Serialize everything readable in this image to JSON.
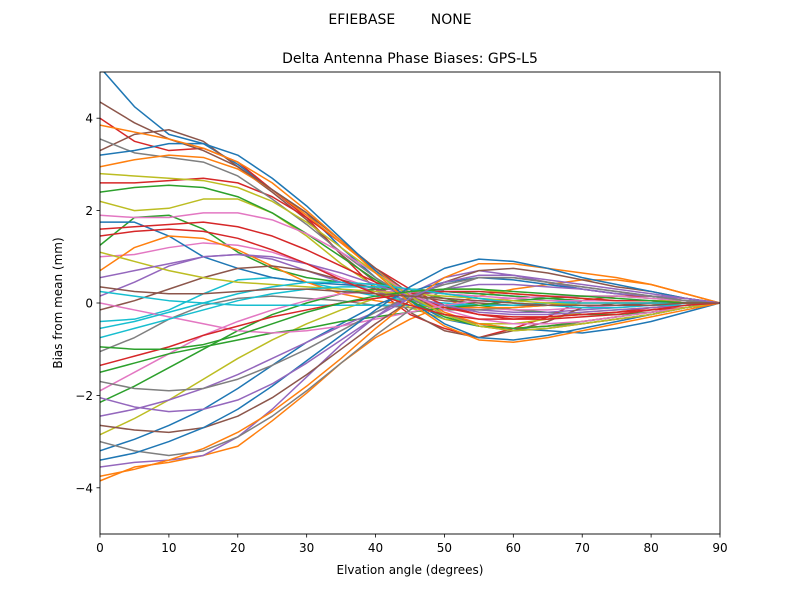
{
  "figure": {
    "suptitle": "EFIEBASE        NONE"
  },
  "chart_data": {
    "type": "line",
    "title": "Delta Antenna Phase Biases: GPS-L5",
    "xlabel": "Elvation angle (degrees)",
    "ylabel": "Bias from mean (mm)",
    "xlim": [
      0,
      90
    ],
    "ylim": [
      -5,
      5
    ],
    "xticks": [
      0,
      10,
      20,
      30,
      40,
      50,
      60,
      70,
      80,
      90
    ],
    "xtick_labels": [
      "0",
      "10",
      "20",
      "30",
      "40",
      "50",
      "60",
      "70",
      "80",
      "90"
    ],
    "yticks": [
      -4,
      -2,
      0,
      2,
      4
    ],
    "ytick_labels": [
      "−4",
      "−2",
      "0",
      "2",
      "4"
    ],
    "grid": false,
    "legend": "none",
    "colors": [
      "#1f77b4",
      "#ff7f0e",
      "#2ca02c",
      "#d62728",
      "#9467bd",
      "#8c564b",
      "#e377c2",
      "#7f7f7f",
      "#bcbd22",
      "#17becf"
    ],
    "x": [
      0,
      5,
      10,
      15,
      20,
      25,
      30,
      35,
      40,
      45,
      50,
      55,
      60,
      65,
      70,
      75,
      80,
      85,
      90
    ],
    "series": [
      {
        "values": [
          5.1,
          4.25,
          3.65,
          3.45,
          3.0,
          2.45,
          1.95,
          1.2,
          0.55,
          0.05,
          -0.35,
          -0.5,
          -0.55,
          -0.6,
          -0.65,
          -0.55,
          -0.4,
          -0.2,
          0.0
        ]
      },
      {
        "values": [
          -3.85,
          -3.55,
          -3.45,
          -3.3,
          -3.1,
          -2.55,
          -1.95,
          -1.3,
          -0.75,
          -0.35,
          -0.05,
          0.15,
          0.3,
          0.4,
          0.5,
          0.5,
          0.4,
          0.2,
          0.0
        ]
      },
      {
        "values": [
          1.25,
          1.85,
          1.9,
          1.6,
          1.1,
          0.75,
          0.55,
          0.45,
          0.4,
          0.25,
          0.1,
          -0.05,
          -0.15,
          -0.2,
          -0.25,
          -0.25,
          -0.2,
          -0.1,
          0.0
        ]
      },
      {
        "values": [
          4.0,
          3.5,
          3.3,
          3.35,
          3.05,
          2.45,
          1.85,
          1.05,
          0.3,
          -0.25,
          -0.55,
          -0.75,
          -0.55,
          -0.3,
          0.05,
          0.15,
          0.15,
          0.1,
          0.0
        ]
      },
      {
        "values": [
          0.15,
          0.45,
          0.8,
          1.0,
          1.05,
          0.95,
          0.7,
          0.45,
          0.25,
          0.05,
          -0.1,
          -0.15,
          -0.2,
          -0.2,
          -0.15,
          -0.1,
          -0.05,
          0.0,
          0.0
        ]
      },
      {
        "values": [
          3.3,
          3.65,
          3.75,
          3.5,
          2.95,
          2.4,
          1.8,
          1.05,
          0.45,
          -0.2,
          -0.6,
          -0.75,
          -0.6,
          -0.4,
          -0.1,
          0.0,
          0.0,
          0.0,
          0.0
        ]
      },
      {
        "values": [
          1.0,
          1.05,
          1.2,
          1.3,
          1.25,
          1.1,
          0.85,
          0.55,
          0.3,
          0.1,
          -0.05,
          -0.1,
          -0.15,
          -0.15,
          -0.1,
          -0.05,
          -0.05,
          0.0,
          0.0
        ]
      },
      {
        "values": [
          -1.05,
          -0.75,
          -0.35,
          -0.05,
          0.1,
          0.15,
          0.1,
          0.05,
          -0.05,
          -0.1,
          -0.15,
          -0.15,
          -0.1,
          -0.05,
          0.05,
          0.05,
          0.05,
          0.05,
          0.0
        ]
      },
      {
        "values": [
          2.2,
          2.0,
          2.05,
          2.25,
          2.25,
          1.95,
          1.45,
          0.85,
          0.35,
          -0.1,
          -0.35,
          -0.45,
          -0.45,
          -0.35,
          -0.2,
          -0.15,
          -0.1,
          -0.05,
          0.0
        ]
      },
      {
        "values": [
          -0.4,
          -0.35,
          -0.15,
          0.2,
          0.5,
          0.55,
          0.45,
          0.3,
          0.15,
          0.05,
          0.0,
          -0.05,
          -0.05,
          0.0,
          0.05,
          0.05,
          0.05,
          0.05,
          0.0
        ]
      },
      {
        "values": [
          1.75,
          1.75,
          1.45,
          1.0,
          0.75,
          0.55,
          0.45,
          0.4,
          0.35,
          0.3,
          0.25,
          0.2,
          0.15,
          0.1,
          0.05,
          0.05,
          0.05,
          0.0,
          0.0
        ]
      },
      {
        "values": [
          0.7,
          1.2,
          1.45,
          1.4,
          1.15,
          0.8,
          0.45,
          0.2,
          0.05,
          -0.05,
          -0.1,
          -0.1,
          -0.1,
          -0.05,
          0.0,
          0.0,
          0.0,
          0.0,
          0.0
        ]
      },
      {
        "values": [
          -2.15,
          -1.8,
          -1.4,
          -1.0,
          -0.6,
          -0.25,
          0.0,
          0.2,
          0.3,
          0.3,
          0.25,
          0.2,
          0.15,
          0.1,
          0.05,
          0.05,
          0.05,
          0.0,
          0.0
        ]
      },
      {
        "values": [
          2.6,
          2.6,
          2.65,
          2.7,
          2.6,
          2.3,
          1.85,
          1.3,
          0.75,
          0.3,
          -0.05,
          -0.25,
          -0.35,
          -0.35,
          -0.3,
          -0.25,
          -0.15,
          -0.1,
          0.0
        ]
      },
      {
        "values": [
          -3.55,
          -3.45,
          -3.4,
          -3.3,
          -2.9,
          -2.3,
          -1.6,
          -0.9,
          -0.3,
          0.2,
          0.55,
          0.7,
          0.6,
          0.45,
          0.3,
          0.2,
          0.15,
          0.1,
          0.0
        ]
      },
      {
        "values": [
          -0.15,
          0.05,
          0.3,
          0.55,
          0.75,
          0.8,
          0.7,
          0.5,
          0.3,
          0.15,
          0.05,
          0.0,
          -0.05,
          -0.05,
          -0.05,
          -0.05,
          0.0,
          0.0,
          0.0
        ]
      },
      {
        "values": [
          -1.9,
          -1.5,
          -1.1,
          -0.7,
          -0.4,
          -0.15,
          0.05,
          0.2,
          0.25,
          0.25,
          0.2,
          0.15,
          0.1,
          0.05,
          0.05,
          0.05,
          0.05,
          0.0,
          0.0
        ]
      },
      {
        "values": [
          3.55,
          3.25,
          3.15,
          3.05,
          2.75,
          2.25,
          1.7,
          1.1,
          0.55,
          0.1,
          -0.25,
          -0.45,
          -0.55,
          -0.5,
          -0.45,
          -0.35,
          -0.25,
          -0.1,
          0.0
        ]
      },
      {
        "values": [
          -2.85,
          -2.5,
          -2.1,
          -1.65,
          -1.2,
          -0.8,
          -0.45,
          -0.15,
          0.1,
          0.25,
          0.3,
          0.3,
          0.2,
          0.15,
          0.1,
          0.05,
          0.05,
          0.05,
          0.0
        ]
      },
      {
        "values": [
          0.25,
          0.15,
          0.05,
          0.0,
          -0.05,
          -0.05,
          -0.05,
          -0.05,
          -0.05,
          -0.05,
          -0.05,
          -0.05,
          -0.05,
          0.0,
          0.0,
          0.0,
          0.0,
          0.0,
          0.0
        ]
      },
      {
        "values": [
          -3.2,
          -2.95,
          -2.65,
          -2.3,
          -1.85,
          -1.35,
          -0.85,
          -0.45,
          -0.05,
          0.25,
          0.45,
          0.55,
          0.5,
          0.4,
          0.3,
          0.2,
          0.15,
          0.05,
          0.0
        ]
      },
      {
        "values": [
          2.95,
          3.1,
          3.2,
          3.15,
          2.9,
          2.45,
          1.9,
          1.3,
          0.7,
          0.2,
          -0.2,
          -0.45,
          -0.55,
          -0.5,
          -0.4,
          -0.3,
          -0.2,
          -0.1,
          0.0
        ]
      },
      {
        "values": [
          -1.5,
          -1.3,
          -1.1,
          -0.95,
          -0.8,
          -0.65,
          -0.55,
          -0.4,
          -0.3,
          -0.2,
          -0.1,
          -0.05,
          0.05,
          0.1,
          0.15,
          0.15,
          0.1,
          0.05,
          0.0
        ]
      },
      {
        "values": [
          1.6,
          1.65,
          1.7,
          1.75,
          1.65,
          1.45,
          1.15,
          0.8,
          0.45,
          0.15,
          -0.1,
          -0.25,
          -0.3,
          -0.3,
          -0.25,
          -0.2,
          -0.1,
          -0.05,
          0.0
        ]
      },
      {
        "values": [
          -2.45,
          -2.3,
          -2.1,
          -1.85,
          -1.55,
          -1.2,
          -0.85,
          -0.5,
          -0.2,
          0.1,
          0.3,
          0.4,
          0.4,
          0.35,
          0.3,
          0.2,
          0.15,
          0.05,
          0.0
        ]
      },
      {
        "values": [
          4.35,
          3.9,
          3.55,
          3.3,
          2.95,
          2.45,
          1.95,
          1.35,
          0.75,
          0.2,
          -0.25,
          -0.5,
          -0.6,
          -0.55,
          -0.45,
          -0.35,
          -0.25,
          -0.1,
          0.0
        ]
      },
      {
        "values": [
          0.0,
          -0.15,
          -0.3,
          -0.45,
          -0.6,
          -0.65,
          -0.6,
          -0.5,
          -0.35,
          -0.2,
          -0.05,
          0.05,
          0.1,
          0.15,
          0.15,
          0.15,
          0.1,
          0.05,
          0.0
        ]
      },
      {
        "values": [
          -3.0,
          -3.2,
          -3.3,
          -3.2,
          -2.9,
          -2.45,
          -1.9,
          -1.3,
          -0.7,
          -0.15,
          0.3,
          0.55,
          0.55,
          0.45,
          0.35,
          0.25,
          0.15,
          0.05,
          0.0
        ]
      },
      {
        "values": [
          1.1,
          0.9,
          0.7,
          0.55,
          0.45,
          0.4,
          0.35,
          0.3,
          0.25,
          0.2,
          0.15,
          0.1,
          0.05,
          0.0,
          -0.05,
          -0.05,
          -0.05,
          0.0,
          0.0
        ]
      },
      {
        "values": [
          -0.75,
          -0.55,
          -0.35,
          -0.15,
          0.05,
          0.2,
          0.3,
          0.35,
          0.35,
          0.3,
          0.2,
          0.1,
          0.0,
          -0.05,
          -0.05,
          -0.05,
          -0.05,
          0.0,
          0.0
        ]
      },
      {
        "values": [
          3.2,
          3.3,
          3.45,
          3.45,
          3.2,
          2.7,
          2.1,
          1.4,
          0.7,
          0.05,
          -0.45,
          -0.75,
          -0.8,
          -0.7,
          -0.55,
          -0.4,
          -0.25,
          -0.1,
          0.0
        ]
      },
      {
        "values": [
          -3.75,
          -3.6,
          -3.4,
          -3.15,
          -2.8,
          -2.35,
          -1.8,
          -1.2,
          -0.55,
          0.05,
          0.55,
          0.85,
          0.85,
          0.75,
          0.65,
          0.55,
          0.4,
          0.2,
          0.0
        ]
      },
      {
        "values": [
          2.4,
          2.5,
          2.55,
          2.5,
          2.3,
          1.95,
          1.5,
          1.0,
          0.5,
          0.05,
          -0.3,
          -0.5,
          -0.55,
          -0.5,
          -0.4,
          -0.3,
          -0.2,
          -0.1,
          0.0
        ]
      },
      {
        "values": [
          -1.35,
          -1.15,
          -0.95,
          -0.7,
          -0.5,
          -0.3,
          -0.15,
          0.0,
          0.1,
          0.2,
          0.25,
          0.25,
          0.2,
          0.15,
          0.1,
          0.05,
          0.05,
          0.0,
          0.0
        ]
      },
      {
        "values": [
          0.55,
          0.7,
          0.85,
          1.0,
          1.05,
          1.0,
          0.85,
          0.65,
          0.4,
          0.15,
          -0.05,
          -0.2,
          -0.25,
          -0.25,
          -0.2,
          -0.15,
          -0.1,
          -0.05,
          0.0
        ]
      },
      {
        "values": [
          -2.65,
          -2.75,
          -2.8,
          -2.7,
          -2.45,
          -2.05,
          -1.55,
          -1.0,
          -0.45,
          0.05,
          0.45,
          0.7,
          0.75,
          0.65,
          0.5,
          0.35,
          0.25,
          0.1,
          0.0
        ]
      },
      {
        "values": [
          1.9,
          1.85,
          1.85,
          1.95,
          1.95,
          1.8,
          1.5,
          1.1,
          0.65,
          0.2,
          -0.15,
          -0.35,
          -0.45,
          -0.45,
          -0.4,
          -0.3,
          -0.2,
          -0.1,
          0.0
        ]
      },
      {
        "values": [
          -1.7,
          -1.85,
          -1.9,
          -1.85,
          -1.65,
          -1.35,
          -1.0,
          -0.6,
          -0.2,
          0.15,
          0.4,
          0.55,
          0.55,
          0.45,
          0.35,
          0.25,
          0.15,
          0.05,
          0.0
        ]
      },
      {
        "values": [
          2.8,
          2.75,
          2.7,
          2.65,
          2.5,
          2.2,
          1.75,
          1.2,
          0.65,
          0.15,
          -0.25,
          -0.5,
          -0.6,
          -0.55,
          -0.45,
          -0.35,
          -0.25,
          -0.1,
          0.0
        ]
      },
      {
        "values": [
          -0.55,
          -0.4,
          -0.2,
          0.0,
          0.2,
          0.35,
          0.45,
          0.45,
          0.4,
          0.3,
          0.2,
          0.1,
          0.0,
          -0.05,
          -0.1,
          -0.1,
          -0.05,
          -0.05,
          0.0
        ]
      },
      {
        "values": [
          -3.4,
          -3.25,
          -3.0,
          -2.7,
          -2.3,
          -1.8,
          -1.25,
          -0.7,
          -0.15,
          0.35,
          0.75,
          0.95,
          0.9,
          0.75,
          0.55,
          0.4,
          0.25,
          0.1,
          0.0
        ]
      },
      {
        "values": [
          3.85,
          3.7,
          3.55,
          3.35,
          3.05,
          2.6,
          2.0,
          1.35,
          0.65,
          0.0,
          -0.5,
          -0.8,
          -0.85,
          -0.75,
          -0.6,
          -0.45,
          -0.3,
          -0.15,
          0.0
        ]
      },
      {
        "values": [
          -0.95,
          -1.0,
          -1.0,
          -0.9,
          -0.7,
          -0.45,
          -0.2,
          0.0,
          0.15,
          0.25,
          0.3,
          0.3,
          0.25,
          0.2,
          0.15,
          0.1,
          0.05,
          0.0,
          0.0
        ]
      },
      {
        "values": [
          1.45,
          1.55,
          1.6,
          1.55,
          1.4,
          1.15,
          0.85,
          0.5,
          0.2,
          -0.05,
          -0.25,
          -0.35,
          -0.35,
          -0.3,
          -0.25,
          -0.2,
          -0.15,
          -0.05,
          0.0
        ]
      },
      {
        "values": [
          -2.05,
          -2.25,
          -2.35,
          -2.3,
          -2.1,
          -1.75,
          -1.3,
          -0.8,
          -0.3,
          0.1,
          0.45,
          0.6,
          0.6,
          0.5,
          0.4,
          0.3,
          0.2,
          0.1,
          0.0
        ]
      },
      {
        "values": [
          0.35,
          0.25,
          0.2,
          0.2,
          0.25,
          0.3,
          0.3,
          0.25,
          0.2,
          0.15,
          0.1,
          0.05,
          0.0,
          -0.05,
          -0.05,
          -0.05,
          -0.05,
          0.0,
          0.0
        ]
      }
    ]
  }
}
